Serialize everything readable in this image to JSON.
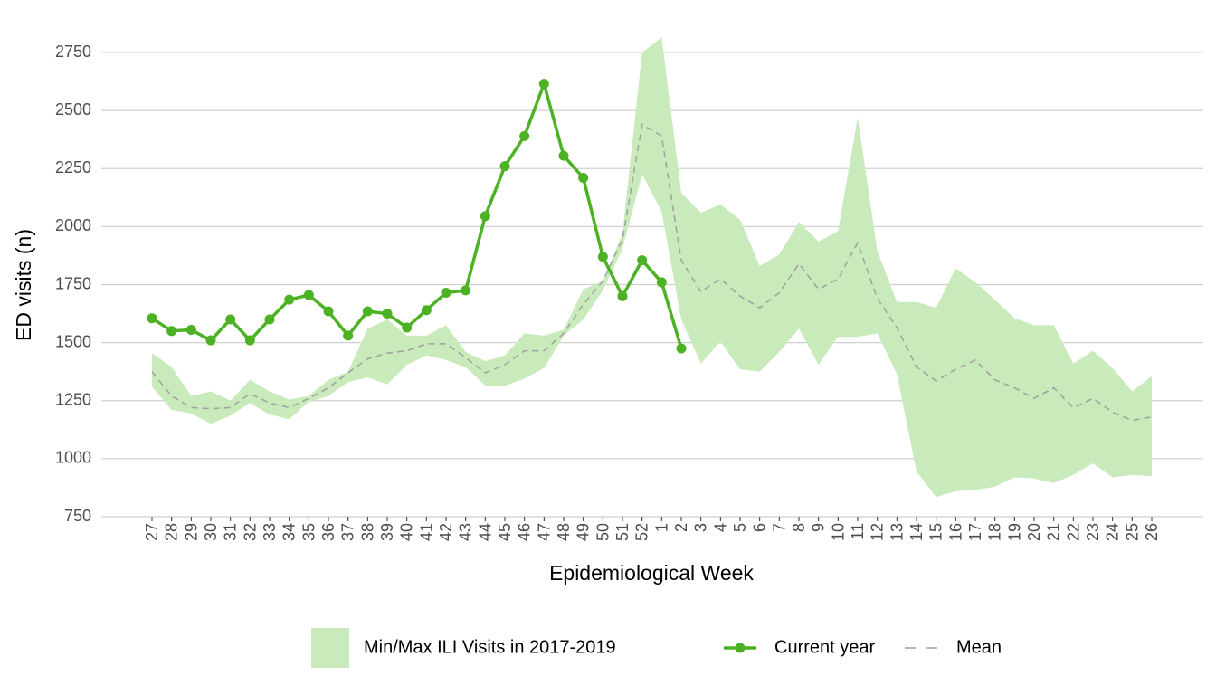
{
  "chart_data": {
    "type": "line",
    "x_label": "Epidemiological Week",
    "y_label": "ED visits (n)",
    "categories": [
      "27",
      "28",
      "29",
      "30",
      "31",
      "32",
      "33",
      "34",
      "35",
      "36",
      "37",
      "38",
      "39",
      "40",
      "41",
      "42",
      "43",
      "44",
      "45",
      "46",
      "47",
      "48",
      "49",
      "50",
      "51",
      "52",
      "1",
      "2",
      "3",
      "4",
      "5",
      "6",
      "7",
      "8",
      "9",
      "10",
      "11",
      "12",
      "13",
      "14",
      "15",
      "16",
      "17",
      "18",
      "19",
      "20",
      "21",
      "22",
      "23",
      "24",
      "25",
      "26"
    ],
    "series": [
      {
        "name": "Min/Max ILI Visits in 2017-2019",
        "color": "#c9eabb",
        "kind": "band",
        "max": [
          1455,
          1395,
          1270,
          1290,
          1250,
          1340,
          1290,
          1255,
          1270,
          1340,
          1375,
          1560,
          1600,
          1530,
          1530,
          1575,
          1460,
          1420,
          1445,
          1540,
          1530,
          1555,
          1730,
          1765,
          1970,
          2750,
          2815,
          2145,
          2060,
          2095,
          2030,
          1830,
          1880,
          2020,
          1935,
          1980,
          2470,
          1895,
          1675,
          1675,
          1650,
          1820,
          1760,
          1685,
          1605,
          1575,
          1575,
          1410,
          1465,
          1390,
          1290,
          1355
        ],
        "min": [
          1310,
          1210,
          1195,
          1150,
          1185,
          1240,
          1190,
          1170,
          1245,
          1270,
          1330,
          1350,
          1320,
          1405,
          1445,
          1425,
          1395,
          1315,
          1315,
          1345,
          1390,
          1530,
          1600,
          1725,
          1905,
          2225,
          2065,
          1600,
          1410,
          1505,
          1385,
          1375,
          1460,
          1560,
          1405,
          1525,
          1525,
          1540,
          1365,
          945,
          835,
          860,
          865,
          880,
          920,
          915,
          895,
          930,
          980,
          920,
          930,
          925
        ]
      },
      {
        "name": "Current year",
        "color": "#4cb224",
        "kind": "line-points",
        "values": [
          1605,
          1550,
          1555,
          1510,
          1600,
          1510,
          1600,
          1685,
          1705,
          1635,
          1530,
          1635,
          1625,
          1565,
          1640,
          1715,
          1725,
          2045,
          2260,
          2390,
          2615,
          2305,
          2210,
          1870,
          1700,
          1855,
          1760,
          1475,
          null,
          null,
          null,
          null,
          null,
          null,
          null,
          null,
          null,
          null,
          null,
          null,
          null,
          null,
          null,
          null,
          null,
          null,
          null,
          null,
          null,
          null,
          null,
          null
        ]
      },
      {
        "name": "Mean",
        "color": "#a0a0a0",
        "kind": "dashed",
        "values": [
          1375,
          1270,
          1220,
          1215,
          1220,
          1280,
          1240,
          1220,
          1260,
          1305,
          1370,
          1430,
          1455,
          1465,
          1495,
          1495,
          1435,
          1370,
          1405,
          1465,
          1465,
          1540,
          1665,
          1765,
          1945,
          2440,
          2390,
          1855,
          1720,
          1775,
          1700,
          1650,
          1715,
          1840,
          1730,
          1775,
          1930,
          1690,
          1565,
          1395,
          1335,
          1385,
          1425,
          1340,
          1305,
          1260,
          1305,
          1220,
          1260,
          1200,
          1165,
          1180
        ]
      }
    ],
    "ylim": [
      750,
      2800
    ],
    "yticks": [
      750,
      1000,
      1250,
      1500,
      1750,
      2000,
      2250,
      2500,
      2750
    ],
    "grid": true,
    "legend": "bottom"
  }
}
